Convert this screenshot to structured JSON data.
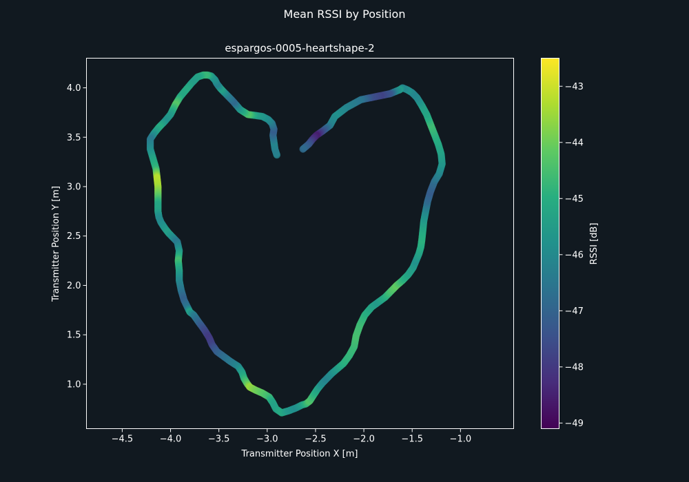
{
  "chart_data": {
    "type": "scatter",
    "suptitle": "Mean RSSI by Position",
    "title": "espargos-0005-heartshape-2",
    "xlabel": "Transmitter Position X [m]",
    "ylabel": "Transmitter Position Y [m]",
    "xlim": [
      -4.87,
      -0.45
    ],
    "ylim": [
      0.55,
      4.3
    ],
    "xticks": [
      -4.5,
      -4.0,
      -3.5,
      -3.0,
      -2.5,
      -2.0,
      -1.5,
      -1.0
    ],
    "xtick_labels": [
      "−4.5",
      "−4.0",
      "−3.5",
      "−3.0",
      "−2.5",
      "−2.0",
      "−1.5",
      "−1.0"
    ],
    "yticks": [
      1.0,
      1.5,
      2.0,
      2.5,
      3.0,
      3.5,
      4.0
    ],
    "ytick_labels": [
      "1.0",
      "1.5",
      "2.0",
      "2.5",
      "3.0",
      "3.5",
      "4.0"
    ],
    "grid": false,
    "colormap": "viridis",
    "colorbar": {
      "label": "RSSI [dB]",
      "range": [
        -49.1,
        -42.5
      ],
      "ticks": [
        -43,
        -44,
        -45,
        -46,
        -47,
        -48,
        -49
      ],
      "tick_labels": [
        "−43",
        "−44",
        "−45",
        "−46",
        "−47",
        "−48",
        "−49"
      ]
    },
    "series": [
      {
        "x": [
          -2.9,
          -2.92,
          -2.93,
          -2.94,
          -2.93,
          -2.95,
          -2.99,
          -3.05,
          -3.12,
          -3.2,
          -3.28,
          -3.35,
          -3.42,
          -3.48,
          -3.52,
          -3.54,
          -3.58,
          -3.62,
          -3.66,
          -3.72,
          -3.78,
          -3.84,
          -3.9,
          -3.95,
          -4.0,
          -4.06,
          -4.12,
          -4.17,
          -4.21,
          -4.21,
          -4.18,
          -4.15,
          -4.14,
          -4.13,
          -4.13,
          -4.13,
          -4.13,
          -4.12,
          -4.1,
          -4.06,
          -4.02,
          -3.98,
          -3.93,
          -3.91,
          -3.92,
          -3.91,
          -3.91,
          -3.89,
          -3.86,
          -3.82,
          -3.8,
          -3.76,
          -3.71,
          -3.65,
          -3.6,
          -3.57,
          -3.52,
          -3.45,
          -3.38,
          -3.3,
          -3.26,
          -3.24,
          -3.21,
          -3.18,
          -3.12,
          -3.05,
          -2.98,
          -2.94,
          -2.91,
          -2.85,
          -2.78,
          -2.7,
          -2.64,
          -2.6,
          -2.56,
          -2.52,
          -2.48,
          -2.43,
          -2.38,
          -2.33,
          -2.27,
          -2.21,
          -2.15,
          -2.1,
          -2.08,
          -2.04,
          -1.99,
          -1.92,
          -1.85,
          -1.78,
          -1.72,
          -1.66,
          -1.6,
          -1.54,
          -1.49,
          -1.46,
          -1.43,
          -1.41,
          -1.4,
          -1.39,
          -1.38,
          -1.36,
          -1.34,
          -1.31,
          -1.27,
          -1.22,
          -1.19,
          -1.2,
          -1.23,
          -1.27,
          -1.31,
          -1.35,
          -1.4,
          -1.45,
          -1.5,
          -1.55,
          -1.6,
          -1.63,
          -1.68,
          -1.73,
          -1.83,
          -1.93,
          -2.03,
          -2.18,
          -2.3,
          -2.35,
          -2.43,
          -2.49,
          -2.53,
          -2.57,
          -2.63
        ],
        "y": [
          3.32,
          3.38,
          3.45,
          3.52,
          3.58,
          3.64,
          3.68,
          3.71,
          3.72,
          3.73,
          3.78,
          3.86,
          3.93,
          3.99,
          4.04,
          4.08,
          4.12,
          4.13,
          4.13,
          4.11,
          4.05,
          3.98,
          3.91,
          3.83,
          3.73,
          3.66,
          3.6,
          3.54,
          3.48,
          3.38,
          3.28,
          3.18,
          3.09,
          3.0,
          2.9,
          2.82,
          2.75,
          2.69,
          2.64,
          2.58,
          2.53,
          2.49,
          2.44,
          2.35,
          2.25,
          2.15,
          2.05,
          1.95,
          1.85,
          1.77,
          1.73,
          1.7,
          1.63,
          1.55,
          1.47,
          1.4,
          1.33,
          1.28,
          1.23,
          1.18,
          1.12,
          1.06,
          1.01,
          0.97,
          0.94,
          0.91,
          0.87,
          0.81,
          0.75,
          0.71,
          0.73,
          0.76,
          0.79,
          0.8,
          0.83,
          0.89,
          0.95,
          1.01,
          1.06,
          1.11,
          1.16,
          1.21,
          1.29,
          1.38,
          1.49,
          1.6,
          1.7,
          1.78,
          1.83,
          1.88,
          1.94,
          2.0,
          2.05,
          2.11,
          2.18,
          2.25,
          2.32,
          2.39,
          2.46,
          2.55,
          2.65,
          2.75,
          2.85,
          2.95,
          3.05,
          3.13,
          3.23,
          3.33,
          3.43,
          3.53,
          3.63,
          3.73,
          3.82,
          3.9,
          3.95,
          3.98,
          4.0,
          3.98,
          3.96,
          3.94,
          3.92,
          3.9,
          3.88,
          3.8,
          3.71,
          3.62,
          3.56,
          3.52,
          3.48,
          3.43,
          3.38
        ],
        "rssi": [
          -46.2,
          -46.3,
          -46.1,
          -46.8,
          -47.2,
          -46.5,
          -46.0,
          -45.7,
          -45.4,
          -44.3,
          -45.4,
          -46.9,
          -46.3,
          -45.3,
          -46.3,
          -45.9,
          -45.6,
          -44.8,
          -44.7,
          -45.3,
          -45.5,
          -45.1,
          -45.2,
          -44.2,
          -45.5,
          -45.8,
          -45.0,
          -45.6,
          -46.5,
          -46.0,
          -45.3,
          -44.8,
          -43.2,
          -43.4,
          -44.2,
          -45.2,
          -45.3,
          -45.9,
          -46.0,
          -45.7,
          -45.4,
          -45.8,
          -46.5,
          -45.7,
          -44.5,
          -45.3,
          -46.0,
          -46.5,
          -47.1,
          -46.5,
          -45.3,
          -46.3,
          -46.9,
          -47.6,
          -48.0,
          -47.8,
          -47.2,
          -46.8,
          -46.5,
          -46.1,
          -45.5,
          -44.9,
          -44.3,
          -43.5,
          -43.9,
          -44.2,
          -44.6,
          -45.3,
          -45.4,
          -45.1,
          -45.6,
          -45.9,
          -45.5,
          -44.9,
          -44.3,
          -44.8,
          -45.3,
          -45.9,
          -46.2,
          -45.9,
          -45.5,
          -45.0,
          -44.8,
          -44.7,
          -44.5,
          -44.6,
          -44.9,
          -45.3,
          -45.6,
          -45.1,
          -44.5,
          -44.1,
          -44.8,
          -45.3,
          -45.5,
          -45.8,
          -45.4,
          -45.1,
          -44.9,
          -45.1,
          -45.5,
          -46.0,
          -46.8,
          -47.2,
          -46.8,
          -46.2,
          -45.7,
          -45.4,
          -45.2,
          -44.9,
          -44.6,
          -45.2,
          -45.4,
          -46.0,
          -46.1,
          -45.8,
          -46.1,
          -45.5,
          -46.1,
          -47.3,
          -47.8,
          -47.5,
          -46.6,
          -46.2,
          -45.8,
          -46.2,
          -47.5,
          -48.6,
          -48.2,
          -47.4,
          -46.8
        ]
      }
    ]
  }
}
